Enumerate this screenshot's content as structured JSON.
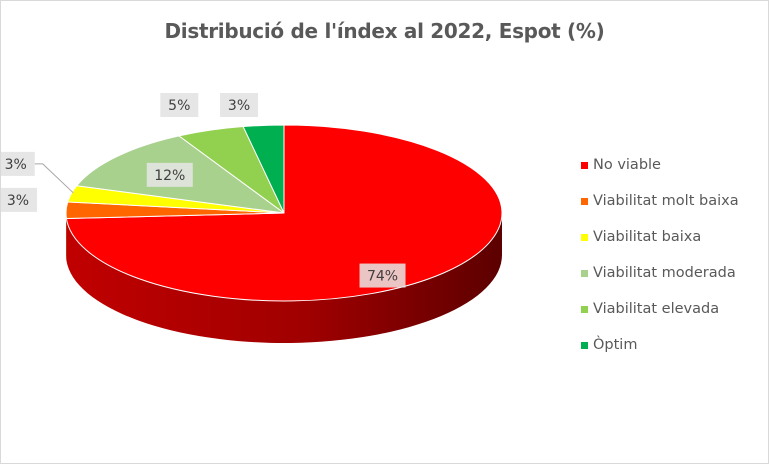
{
  "chart_data": {
    "type": "pie",
    "title": "Distribució de l'índex al 2022, Espot (%)",
    "legend_position": "right",
    "categories": [
      "No viable",
      "Viabilitat molt baixa",
      "Viabilitat baixa",
      "Viabilitat moderada",
      "Viabilitat elevada",
      "Òptim"
    ],
    "values": [
      74,
      3,
      3,
      12,
      5,
      3
    ],
    "data_labels": [
      "74%",
      "3%",
      "3%",
      "12%",
      "5%",
      "3%"
    ],
    "colors": [
      "#ff0000",
      "#ff6600",
      "#ffff00",
      "#a9d18e",
      "#92d050",
      "#00b050"
    ],
    "side_colors": [
      "#b00000",
      "#b04700",
      "#b0b000",
      "#76925f",
      "#659137",
      "#007a38"
    ]
  }
}
